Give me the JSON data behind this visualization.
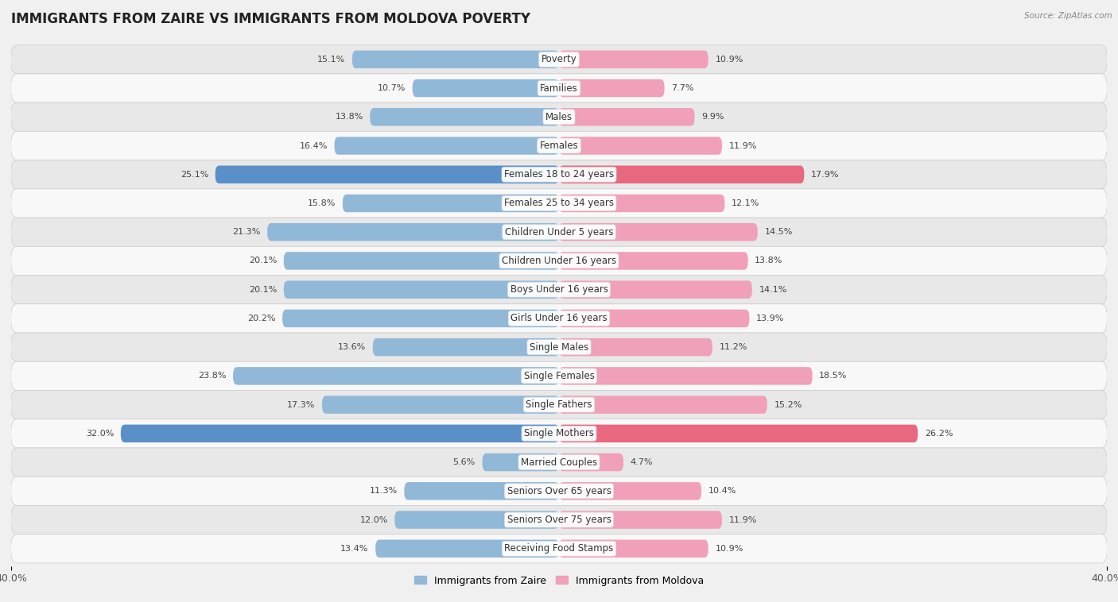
{
  "title": "IMMIGRANTS FROM ZAIRE VS IMMIGRANTS FROM MOLDOVA POVERTY",
  "source": "Source: ZipAtlas.com",
  "categories": [
    "Poverty",
    "Families",
    "Males",
    "Females",
    "Females 18 to 24 years",
    "Females 25 to 34 years",
    "Children Under 5 years",
    "Children Under 16 years",
    "Boys Under 16 years",
    "Girls Under 16 years",
    "Single Males",
    "Single Females",
    "Single Fathers",
    "Single Mothers",
    "Married Couples",
    "Seniors Over 65 years",
    "Seniors Over 75 years",
    "Receiving Food Stamps"
  ],
  "zaire_values": [
    15.1,
    10.7,
    13.8,
    16.4,
    25.1,
    15.8,
    21.3,
    20.1,
    20.1,
    20.2,
    13.6,
    23.8,
    17.3,
    32.0,
    5.6,
    11.3,
    12.0,
    13.4
  ],
  "moldova_values": [
    10.9,
    7.7,
    9.9,
    11.9,
    17.9,
    12.1,
    14.5,
    13.8,
    14.1,
    13.9,
    11.2,
    18.5,
    15.2,
    26.2,
    4.7,
    10.4,
    11.9,
    10.9
  ],
  "zaire_color": "#92b8d8",
  "moldova_color": "#f0a0b8",
  "zaire_highlight_color": "#5a8fc8",
  "moldova_highlight_color": "#e86880",
  "highlight_rows": [
    4,
    13
  ],
  "background_color": "#f0f0f0",
  "row_bg_even": "#e8e8e8",
  "row_bg_odd": "#f8f8f8",
  "axis_limit": 40.0,
  "legend_zaire": "Immigrants from Zaire",
  "legend_moldova": "Immigrants from Moldova",
  "title_fontsize": 12,
  "label_fontsize": 8.5,
  "value_fontsize": 8
}
